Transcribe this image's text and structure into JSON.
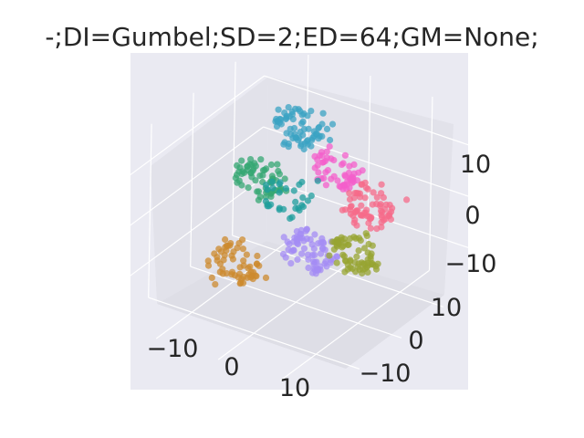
{
  "chart_data": {
    "type": "scatter",
    "projection": "3d",
    "title": "-;DI=Gumbel;SD=2;ED=64;GM=None;",
    "xticks": [
      "−10",
      "0",
      "10"
    ],
    "yticks": [
      "−10",
      "0",
      "10"
    ],
    "zticks": [
      "−10",
      "0",
      "10"
    ],
    "grid": true,
    "legend": "none",
    "clusters": [
      {
        "color": "#3ba3c3",
        "cx": -4,
        "cy": 6,
        "cz": 12,
        "n": 70
      },
      {
        "color": "#f45fcb",
        "cx": 2,
        "cy": 6,
        "cz": 6,
        "n": 55
      },
      {
        "color": "#f56b8a",
        "cx": 9,
        "cy": 4,
        "cz": 3,
        "n": 70
      },
      {
        "color": "#35a773",
        "cx": -9,
        "cy": 4,
        "cz": 1,
        "n": 65
      },
      {
        "color": "#1f9e9e",
        "cx": -4,
        "cy": 3,
        "cz": 0,
        "n": 30
      },
      {
        "color": "#a48cf4",
        "cx": 3,
        "cy": -1,
        "cz": -5,
        "n": 75
      },
      {
        "color": "#97a431",
        "cx": 9,
        "cy": 0,
        "cz": -4,
        "n": 70
      },
      {
        "color": "#cc8a2e",
        "cx": -5,
        "cy": -7,
        "cz": -7,
        "n": 60
      }
    ]
  }
}
